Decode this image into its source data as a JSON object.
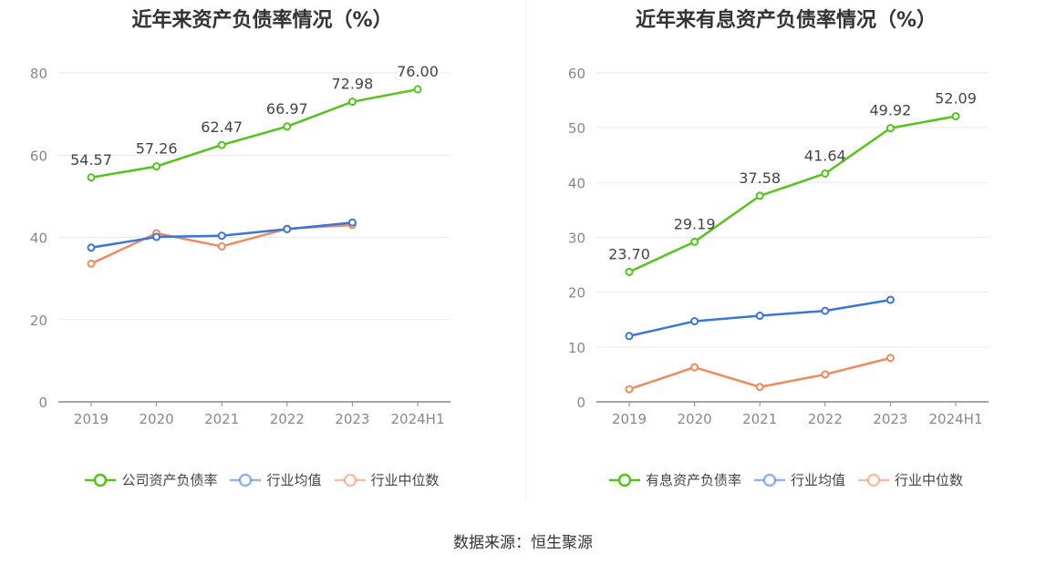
{
  "chart_data": [
    {
      "type": "line",
      "title": "近年来资产负债率情况（%）",
      "categories": [
        "2019",
        "2020",
        "2021",
        "2022",
        "2023",
        "2024H1"
      ],
      "ylim": [
        0,
        80
      ],
      "yticks": [
        0,
        20,
        40,
        60,
        80
      ],
      "grid": true,
      "legend_position": "bottom",
      "series": [
        {
          "name": "公司资产负债率",
          "color": "#52c41a",
          "values": [
            54.57,
            57.26,
            62.47,
            66.97,
            72.98,
            76.0
          ],
          "labels": [
            "54.57",
            "57.26",
            "62.47",
            "66.97",
            "72.98",
            "76.00"
          ]
        },
        {
          "name": "行业均值",
          "color": "#3a75dd",
          "values": [
            37.5,
            40.1,
            40.4,
            42.0,
            43.6,
            null
          ]
        },
        {
          "name": "行业中位数",
          "color": "#f08a5d",
          "values": [
            33.6,
            41.0,
            37.8,
            42.1,
            43.0,
            null
          ]
        }
      ]
    },
    {
      "type": "line",
      "title": "近年来有息资产负债率情况（%）",
      "categories": [
        "2019",
        "2020",
        "2021",
        "2022",
        "2023",
        "2024H1"
      ],
      "ylim": [
        0,
        60
      ],
      "yticks": [
        0,
        10,
        20,
        30,
        40,
        50,
        60
      ],
      "grid": true,
      "legend_position": "bottom",
      "series": [
        {
          "name": "有息资产负债率",
          "color": "#52c41a",
          "values": [
            23.7,
            29.19,
            37.58,
            41.64,
            49.92,
            52.09
          ],
          "labels": [
            "23.70",
            "29.19",
            "37.58",
            "41.64",
            "49.92",
            "52.09"
          ]
        },
        {
          "name": "行业均值",
          "color": "#3a75dd",
          "values": [
            12.0,
            14.7,
            15.7,
            16.6,
            18.6,
            null
          ]
        },
        {
          "name": "行业中位数",
          "color": "#f08a5d",
          "values": [
            2.3,
            6.3,
            2.7,
            5.0,
            8.0,
            null
          ]
        }
      ]
    }
  ],
  "source": "数据来源：恒生聚源"
}
